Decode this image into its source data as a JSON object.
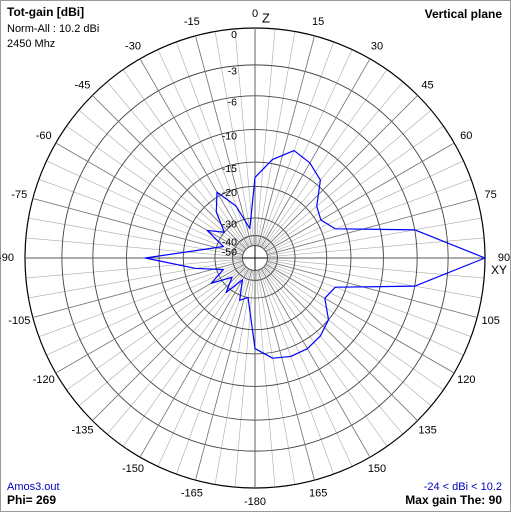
{
  "chart_data": {
    "type": "polar",
    "title": "Tot-gain [dBi]",
    "subtitle": [
      "Norm-All : 10.2 dBi",
      "2450 Mhz"
    ],
    "plane": "Vertical plane",
    "file": "Amos3.out",
    "phi": "Phi= 269",
    "range_note": "-24 < dBi < 10.2",
    "max_gain": "Max gain The: 90",
    "top_axis_label": "Z",
    "right_axis_label": "XY",
    "radial_scale": "arrl",
    "rlim": [
      -50,
      0
    ],
    "rticks": [
      0,
      -3,
      -6,
      -10,
      -15,
      -20,
      -30,
      -40,
      -50
    ],
    "thetaticks": [
      0,
      15,
      30,
      45,
      60,
      75,
      90,
      105,
      120,
      135,
      150,
      165,
      -180,
      -165,
      -150,
      -135,
      -120,
      -105,
      -90,
      -75,
      -60,
      -45,
      -30,
      -15
    ],
    "series": [
      {
        "color": "#0000ff",
        "theta": [
          -180,
          -170,
          -160,
          -150,
          -140,
          -130,
          -120,
          -110,
          -100,
          -90,
          -80,
          -70,
          -60,
          -50,
          -40,
          -30,
          -20,
          -10,
          0,
          10,
          20,
          30,
          40,
          50,
          60,
          70,
          80,
          90,
          100,
          110,
          120,
          130,
          140,
          150,
          160,
          170
        ],
        "values": [
          -16,
          -30,
          -28,
          -38,
          -28,
          -35,
          -26,
          -33,
          -23,
          -12.7,
          -26,
          -33,
          -24.5,
          -30,
          -23,
          -19,
          -24.5,
          -35,
          -18,
          -14.3,
          -12,
          -12.7,
          -14,
          -18,
          -19,
          -17,
          -6,
          0,
          -6,
          -17,
          -18,
          -15,
          -14,
          -13.5,
          -13.5,
          -14
        ]
      }
    ]
  }
}
